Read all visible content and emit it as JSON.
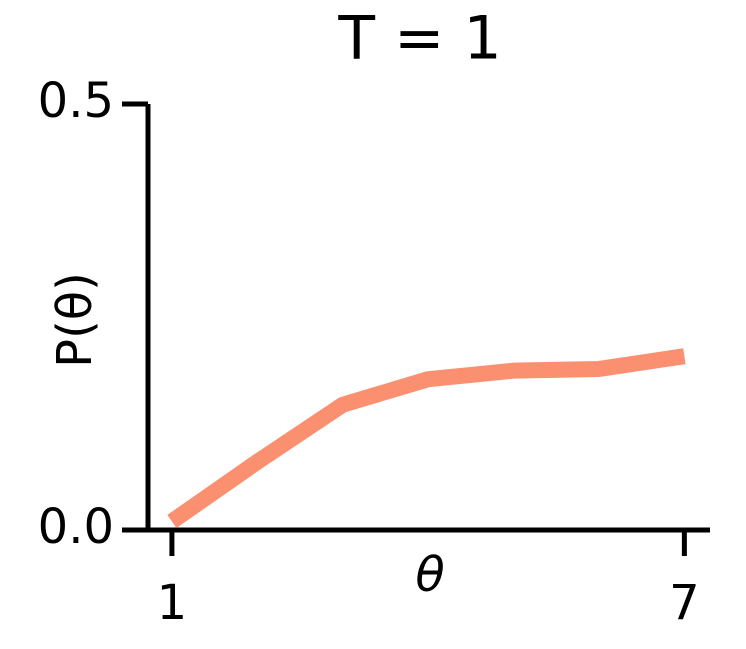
{
  "chart_data": {
    "type": "line",
    "title": "T = 1",
    "x_label": "θ",
    "y_label": "P(θ)",
    "x": [
      1,
      2,
      3,
      4,
      5,
      6,
      7
    ],
    "values": [
      0.01,
      0.08,
      0.147,
      0.177,
      0.187,
      0.189,
      0.204
    ],
    "color": "#fb9070",
    "xlim": [
      0.72,
      7.3
    ],
    "xticks": [
      1,
      7
    ],
    "ylim": [
      0,
      0.5
    ],
    "yticks": [
      {
        "value": 0,
        "label": "0.0"
      },
      {
        "value": 0.5,
        "label": "0.5"
      }
    ],
    "grid": false
  }
}
